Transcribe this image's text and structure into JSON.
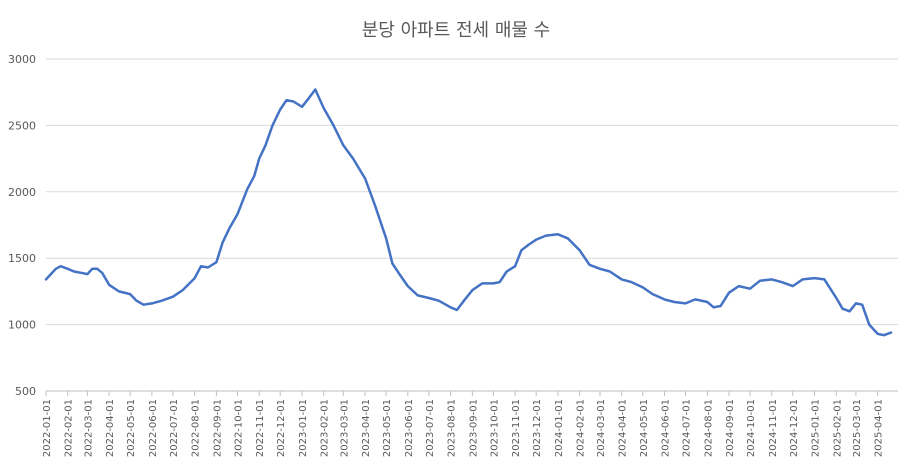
{
  "chart_data": {
    "type": "line",
    "title": "분당 아파트 전세 매물 수",
    "xlabel": "",
    "ylabel": "",
    "ylim": [
      500,
      3000
    ],
    "yticks": [
      "3000",
      "2500",
      "2000",
      "1500",
      "1000",
      "500"
    ],
    "grid": "horizontal",
    "legend": "none",
    "line_color": "#4472C4",
    "x_tick_labels": [
      "2022-01-01",
      "2022-02-01",
      "2022-03-01",
      "2022-04-01",
      "2022-05-01",
      "2022-06-01",
      "2022-07-01",
      "2022-08-01",
      "2022-09-01",
      "2022-10-01",
      "2022-11-01",
      "2022-12-01",
      "2023-01-01",
      "2023-02-01",
      "2023-03-01",
      "2023-04-01",
      "2023-05-01",
      "2023-06-01",
      "2023-07-01",
      "2023-08-01",
      "2023-09-01",
      "2023-10-01",
      "2023-11-01",
      "2023-12-01",
      "2024-01-01",
      "2024-02-01",
      "2024-03-01",
      "2024-04-01",
      "2024-05-01",
      "2024-06-01",
      "2024-07-01",
      "2024-08-01",
      "2024-09-01",
      "2024-10-01",
      "2024-11-01",
      "2024-12-01",
      "2025-01-01",
      "2025-02-01",
      "2025-03-01",
      "2025-04-01"
    ],
    "series": [
      {
        "points": [
          {
            "x": "2022-01-01",
            "y": 1340
          },
          {
            "x": "2022-01-08",
            "y": 1380
          },
          {
            "x": "2022-01-15",
            "y": 1420
          },
          {
            "x": "2022-01-22",
            "y": 1440
          },
          {
            "x": "2022-02-01",
            "y": 1420
          },
          {
            "x": "2022-02-10",
            "y": 1400
          },
          {
            "x": "2022-02-20",
            "y": 1390
          },
          {
            "x": "2022-03-01",
            "y": 1380
          },
          {
            "x": "2022-03-08",
            "y": 1420
          },
          {
            "x": "2022-03-15",
            "y": 1420
          },
          {
            "x": "2022-03-22",
            "y": 1390
          },
          {
            "x": "2022-04-01",
            "y": 1300
          },
          {
            "x": "2022-04-15",
            "y": 1250
          },
          {
            "x": "2022-05-01",
            "y": 1230
          },
          {
            "x": "2022-05-10",
            "y": 1180
          },
          {
            "x": "2022-05-20",
            "y": 1150
          },
          {
            "x": "2022-06-01",
            "y": 1160
          },
          {
            "x": "2022-06-15",
            "y": 1180
          },
          {
            "x": "2022-07-01",
            "y": 1210
          },
          {
            "x": "2022-07-15",
            "y": 1260
          },
          {
            "x": "2022-08-01",
            "y": 1350
          },
          {
            "x": "2022-08-10",
            "y": 1440
          },
          {
            "x": "2022-08-20",
            "y": 1430
          },
          {
            "x": "2022-09-01",
            "y": 1470
          },
          {
            "x": "2022-09-10",
            "y": 1620
          },
          {
            "x": "2022-09-20",
            "y": 1730
          },
          {
            "x": "2022-10-01",
            "y": 1830
          },
          {
            "x": "2022-10-15",
            "y": 2020
          },
          {
            "x": "2022-10-25",
            "y": 2120
          },
          {
            "x": "2022-11-01",
            "y": 2250
          },
          {
            "x": "2022-11-10",
            "y": 2350
          },
          {
            "x": "2022-11-20",
            "y": 2500
          },
          {
            "x": "2022-12-01",
            "y": 2620
          },
          {
            "x": "2022-12-10",
            "y": 2690
          },
          {
            "x": "2022-12-20",
            "y": 2680
          },
          {
            "x": "2023-01-01",
            "y": 2640
          },
          {
            "x": "2023-01-10",
            "y": 2700
          },
          {
            "x": "2023-01-20",
            "y": 2770
          },
          {
            "x": "2023-02-01",
            "y": 2630
          },
          {
            "x": "2023-02-15",
            "y": 2500
          },
          {
            "x": "2023-03-01",
            "y": 2350
          },
          {
            "x": "2023-03-15",
            "y": 2250
          },
          {
            "x": "2023-04-01",
            "y": 2100
          },
          {
            "x": "2023-04-15",
            "y": 1900
          },
          {
            "x": "2023-05-01",
            "y": 1650
          },
          {
            "x": "2023-05-10",
            "y": 1460
          },
          {
            "x": "2023-05-20",
            "y": 1380
          },
          {
            "x": "2023-06-01",
            "y": 1290
          },
          {
            "x": "2023-06-15",
            "y": 1220
          },
          {
            "x": "2023-07-01",
            "y": 1200
          },
          {
            "x": "2023-07-15",
            "y": 1180
          },
          {
            "x": "2023-08-01",
            "y": 1130
          },
          {
            "x": "2023-08-10",
            "y": 1110
          },
          {
            "x": "2023-08-20",
            "y": 1180
          },
          {
            "x": "2023-09-01",
            "y": 1260
          },
          {
            "x": "2023-09-15",
            "y": 1310
          },
          {
            "x": "2023-10-01",
            "y": 1310
          },
          {
            "x": "2023-10-10",
            "y": 1320
          },
          {
            "x": "2023-10-20",
            "y": 1400
          },
          {
            "x": "2023-11-01",
            "y": 1440
          },
          {
            "x": "2023-11-10",
            "y": 1560
          },
          {
            "x": "2023-11-20",
            "y": 1600
          },
          {
            "x": "2023-12-01",
            "y": 1640
          },
          {
            "x": "2023-12-15",
            "y": 1670
          },
          {
            "x": "2024-01-01",
            "y": 1680
          },
          {
            "x": "2024-01-15",
            "y": 1650
          },
          {
            "x": "2024-02-01",
            "y": 1560
          },
          {
            "x": "2024-02-15",
            "y": 1450
          },
          {
            "x": "2024-03-01",
            "y": 1420
          },
          {
            "x": "2024-03-15",
            "y": 1400
          },
          {
            "x": "2024-04-01",
            "y": 1340
          },
          {
            "x": "2024-04-15",
            "y": 1320
          },
          {
            "x": "2024-05-01",
            "y": 1280
          },
          {
            "x": "2024-05-15",
            "y": 1230
          },
          {
            "x": "2024-06-01",
            "y": 1190
          },
          {
            "x": "2024-06-15",
            "y": 1170
          },
          {
            "x": "2024-07-01",
            "y": 1160
          },
          {
            "x": "2024-07-15",
            "y": 1190
          },
          {
            "x": "2024-08-01",
            "y": 1170
          },
          {
            "x": "2024-08-10",
            "y": 1130
          },
          {
            "x": "2024-08-20",
            "y": 1140
          },
          {
            "x": "2024-09-01",
            "y": 1240
          },
          {
            "x": "2024-09-15",
            "y": 1290
          },
          {
            "x": "2024-10-01",
            "y": 1270
          },
          {
            "x": "2024-10-15",
            "y": 1330
          },
          {
            "x": "2024-11-01",
            "y": 1340
          },
          {
            "x": "2024-11-15",
            "y": 1320
          },
          {
            "x": "2024-12-01",
            "y": 1290
          },
          {
            "x": "2024-12-15",
            "y": 1340
          },
          {
            "x": "2025-01-01",
            "y": 1350
          },
          {
            "x": "2025-01-15",
            "y": 1340
          },
          {
            "x": "2025-02-01",
            "y": 1200
          },
          {
            "x": "2025-02-10",
            "y": 1120
          },
          {
            "x": "2025-02-20",
            "y": 1100
          },
          {
            "x": "2025-03-01",
            "y": 1160
          },
          {
            "x": "2025-03-10",
            "y": 1150
          },
          {
            "x": "2025-03-20",
            "y": 1000
          },
          {
            "x": "2025-04-01",
            "y": 930
          },
          {
            "x": "2025-04-10",
            "y": 920
          },
          {
            "x": "2025-04-20",
            "y": 940
          }
        ]
      }
    ]
  }
}
